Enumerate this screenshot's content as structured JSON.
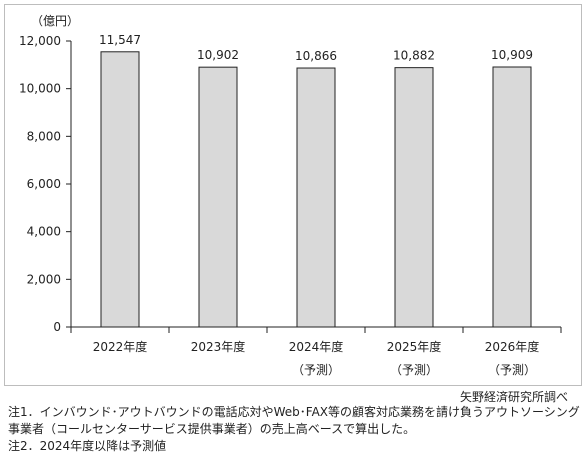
{
  "chart_data": {
    "type": "bar",
    "unit_label": "（億円）",
    "categories": [
      {
        "year": "2022年度",
        "tag": ""
      },
      {
        "year": "2023年度",
        "tag": ""
      },
      {
        "year": "2024年度",
        "tag": "（予測）"
      },
      {
        "year": "2025年度",
        "tag": "（予測）"
      },
      {
        "year": "2026年度",
        "tag": "（予測）"
      }
    ],
    "values": [
      11547,
      10902,
      10866,
      10882,
      10909
    ],
    "value_labels": [
      "11,547",
      "10,902",
      "10,866",
      "10,882",
      "10,909"
    ],
    "yticks": [
      0,
      2000,
      4000,
      6000,
      8000,
      10000,
      12000
    ],
    "ytick_labels": [
      "0",
      "2,000",
      "4,000",
      "6,000",
      "8,000",
      "10,000",
      "12,000"
    ],
    "ylim": [
      0,
      12000
    ],
    "grid": false,
    "bar_color": "#d9d9d9",
    "bar_edge_color": "#222222"
  },
  "source": "矢野経済研究所調べ",
  "notes": [
    "注1．インバウンド･アウトバウンドの電話応対やWeb･FAX等の顧客対応業務を請け負うアウトソーシング",
    "事業者（コールセンターサービス提供事業者）の売上高ベースで算出した。",
    "注2．2024年度以降は予測値"
  ]
}
